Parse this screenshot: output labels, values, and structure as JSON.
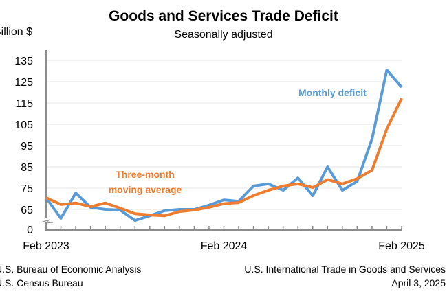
{
  "chart_data": {
    "type": "line",
    "title": "Goods and Services Trade Deficit",
    "subtitle": "Seasonally adjusted",
    "ylabel": "Billion $",
    "y_ticks": [
      0,
      65,
      75,
      85,
      95,
      105,
      115,
      125,
      135
    ],
    "y_axis_break": true,
    "ylim": [
      55,
      140
    ],
    "x_tick_labels": [
      "Feb 2023",
      "Feb 2024",
      "Feb 2025"
    ],
    "x": [
      "Feb 2023",
      "Mar 2023",
      "Apr 2023",
      "May 2023",
      "Jun 2023",
      "Jul 2023",
      "Aug 2023",
      "Sep 2023",
      "Oct 2023",
      "Nov 2023",
      "Dec 2023",
      "Jan 2024",
      "Feb 2024",
      "Mar 2024",
      "Apr 2024",
      "May 2024",
      "Jun 2024",
      "Jul 2024",
      "Aug 2024",
      "Sep 2024",
      "Oct 2024",
      "Nov 2024",
      "Dec 2024",
      "Jan 2025",
      "Feb 2025"
    ],
    "grid": true,
    "series": [
      {
        "name": "Monthly deficit",
        "color": "#5B9BD5",
        "values": [
          70.5,
          60.8,
          72.7,
          66.0,
          65.0,
          64.7,
          59.8,
          62.0,
          64.4,
          65.0,
          65.0,
          67.0,
          69.5,
          68.8,
          76.0,
          77.0,
          74.0,
          79.8,
          71.5,
          85.0,
          74.0,
          78.2,
          98.0,
          130.5,
          122.4
        ]
      },
      {
        "name": "Three-month moving average",
        "name_lines": [
          "Three-month",
          "moving average"
        ],
        "color": "#ED7D31",
        "values": [
          70.5,
          67.3,
          68.0,
          66.3,
          68.0,
          65.6,
          63.0,
          62.4,
          62.0,
          64.0,
          64.7,
          66.0,
          67.7,
          68.2,
          71.5,
          74.0,
          76.0,
          77.0,
          75.3,
          79.0,
          77.0,
          79.5,
          83.4,
          102.8,
          117.2
        ]
      }
    ]
  },
  "footer": {
    "source_lines": [
      "U.S. Bureau of Economic Analysis",
      "U.S. Census Bureau"
    ],
    "release_lines": [
      "U.S. International Trade in Goods and Services",
      "April 3, 2025"
    ]
  }
}
